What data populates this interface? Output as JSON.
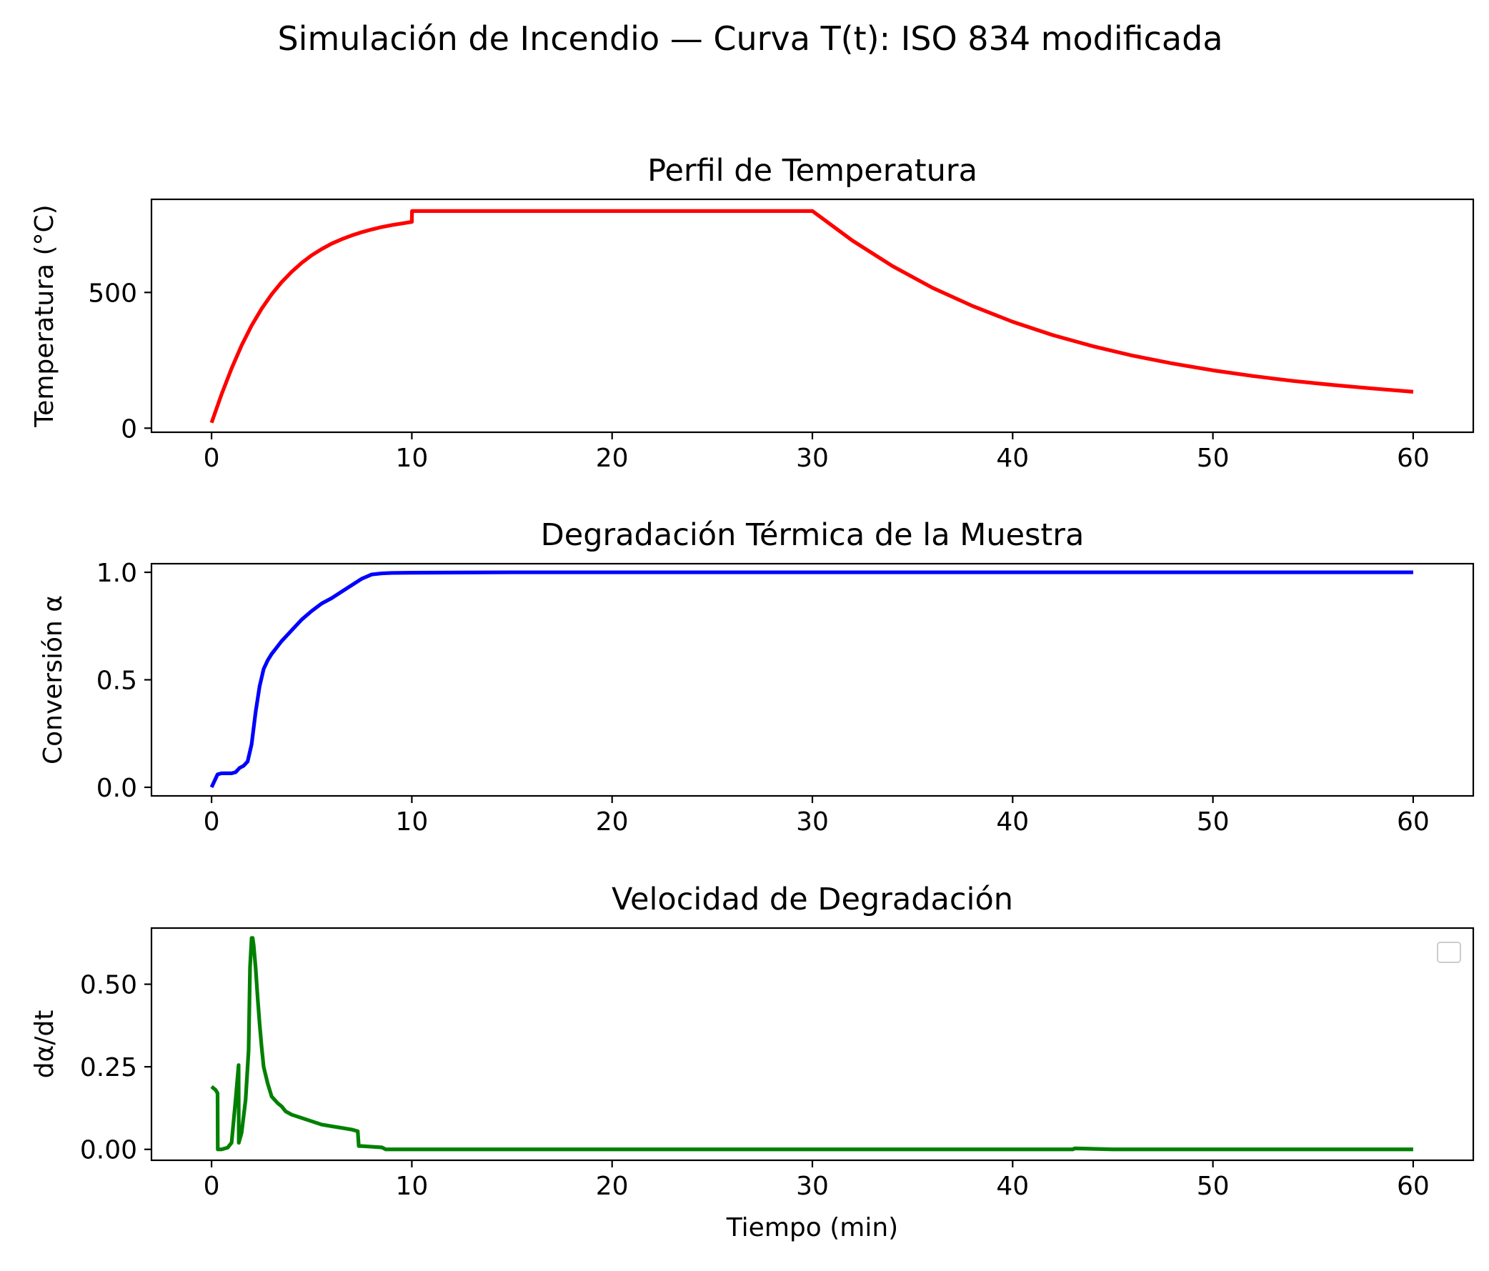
{
  "figure": {
    "suptitle": "Simulación de Incendio — Curva T(t): ISO 834 modificada"
  },
  "colors": {
    "temperature": "#ff0000",
    "conversion": "#0000ff",
    "rate": "#008000"
  },
  "chart_data": [
    {
      "type": "line",
      "title": "Perfil de Temperatura",
      "xlabel": "",
      "ylabel": "Temperatura (°C)",
      "xlim": [
        -3,
        63
      ],
      "ylim": [
        -15,
        843
      ],
      "xticks": [
        0,
        10,
        20,
        30,
        40,
        50,
        60
      ],
      "xtick_labels": [
        "0",
        "10",
        "20",
        "30",
        "40",
        "50",
        "60"
      ],
      "yticks": [
        0,
        500
      ],
      "ytick_labels": [
        "0",
        "500"
      ],
      "grid": false,
      "series": [
        {
          "color": "#ff0000",
          "x": [
            0,
            0.5,
            1,
            1.5,
            2,
            2.5,
            3,
            3.5,
            4,
            4.5,
            5,
            5.5,
            6,
            6.5,
            7,
            7.5,
            8,
            8.5,
            9,
            9.5,
            10,
            10.01,
            15,
            20,
            25,
            30,
            32,
            34,
            36,
            38,
            40,
            42,
            44,
            46,
            48,
            50,
            52,
            54,
            56,
            58,
            60
          ],
          "y": [
            20,
            125,
            220,
            305,
            378,
            440,
            493,
            538,
            576,
            609,
            637,
            660,
            680,
            696,
            710,
            722,
            732,
            741,
            748,
            754,
            760,
            800,
            800,
            800,
            800,
            800,
            691,
            597,
            517,
            450,
            392,
            343,
            302,
            267,
            238,
            213,
            192,
            174,
            159,
            146,
            134
          ]
        }
      ]
    },
    {
      "type": "line",
      "title": "Degradación Térmica de la Muestra",
      "xlabel": "",
      "ylabel": "Conversión α",
      "xlim": [
        -3,
        63
      ],
      "ylim": [
        -0.04,
        1.04
      ],
      "xticks": [
        0,
        10,
        20,
        30,
        40,
        50,
        60
      ],
      "xtick_labels": [
        "0",
        "10",
        "20",
        "30",
        "40",
        "50",
        "60"
      ],
      "yticks": [
        0,
        0.5,
        1
      ],
      "ytick_labels": [
        "0.0",
        "0.5",
        "1.0"
      ],
      "grid": false,
      "series": [
        {
          "color": "#0000ff",
          "x": [
            0,
            0.3,
            0.5,
            0.8,
            1.0,
            1.2,
            1.4,
            1.6,
            1.8,
            2.0,
            2.2,
            2.4,
            2.6,
            2.8,
            3.0,
            3.5,
            4,
            4.5,
            5,
            5.5,
            6,
            6.5,
            7,
            7.5,
            8,
            8.5,
            9,
            10,
            15,
            20,
            30,
            40,
            50,
            60
          ],
          "y": [
            0,
            0.06,
            0.065,
            0.065,
            0.065,
            0.07,
            0.09,
            0.1,
            0.12,
            0.2,
            0.35,
            0.47,
            0.55,
            0.59,
            0.62,
            0.68,
            0.73,
            0.78,
            0.82,
            0.855,
            0.88,
            0.91,
            0.94,
            0.97,
            0.99,
            0.995,
            0.997,
            0.998,
            1.0,
            1.0,
            1.0,
            1.0,
            1.0,
            1.0
          ]
        }
      ]
    },
    {
      "type": "line",
      "title": "Velocidad de Degradación",
      "xlabel": "Tiempo (min)",
      "ylabel": "dα/dt",
      "xlim": [
        -3,
        63
      ],
      "ylim": [
        -0.033,
        0.67
      ],
      "xticks": [
        0,
        10,
        20,
        30,
        40,
        50,
        60
      ],
      "xtick_labels": [
        "0",
        "10",
        "20",
        "30",
        "40",
        "50",
        "60"
      ],
      "yticks": [
        0,
        0.25,
        0.5
      ],
      "ytick_labels": [
        "0.00",
        "0.25",
        "0.50"
      ],
      "grid": false,
      "legend": {
        "placement": "upper right",
        "entries": []
      },
      "series": [
        {
          "color": "#008000",
          "x": [
            0,
            0.1,
            0.2,
            0.3,
            0.31,
            0.5,
            0.8,
            1.0,
            1.2,
            1.35,
            1.36,
            1.5,
            1.7,
            1.85,
            1.92,
            2.0,
            2.05,
            2.1,
            2.2,
            2.3,
            2.4,
            2.5,
            2.6,
            2.8,
            3.0,
            3.3,
            3.5,
            3.7,
            4,
            4.5,
            5,
            5.5,
            6,
            6.5,
            7,
            7.3,
            7.35,
            7.5,
            8,
            8.5,
            8.7,
            9,
            10,
            15,
            20,
            30,
            40,
            43,
            43.1,
            45,
            50,
            60
          ],
          "y": [
            0.19,
            0.185,
            0.18,
            0.17,
            0.0,
            0.0,
            0.005,
            0.02,
            0.15,
            0.255,
            0.02,
            0.05,
            0.15,
            0.3,
            0.55,
            0.64,
            0.64,
            0.62,
            0.55,
            0.46,
            0.38,
            0.31,
            0.25,
            0.2,
            0.16,
            0.14,
            0.13,
            0.115,
            0.105,
            0.095,
            0.085,
            0.075,
            0.07,
            0.065,
            0.06,
            0.055,
            0.01,
            0.01,
            0.008,
            0.006,
            0.0,
            0.0,
            0.0,
            0.0,
            0.0,
            0.0,
            0.0,
            0.0,
            0.003,
            0.0,
            0.0,
            0.0
          ]
        }
      ]
    }
  ]
}
